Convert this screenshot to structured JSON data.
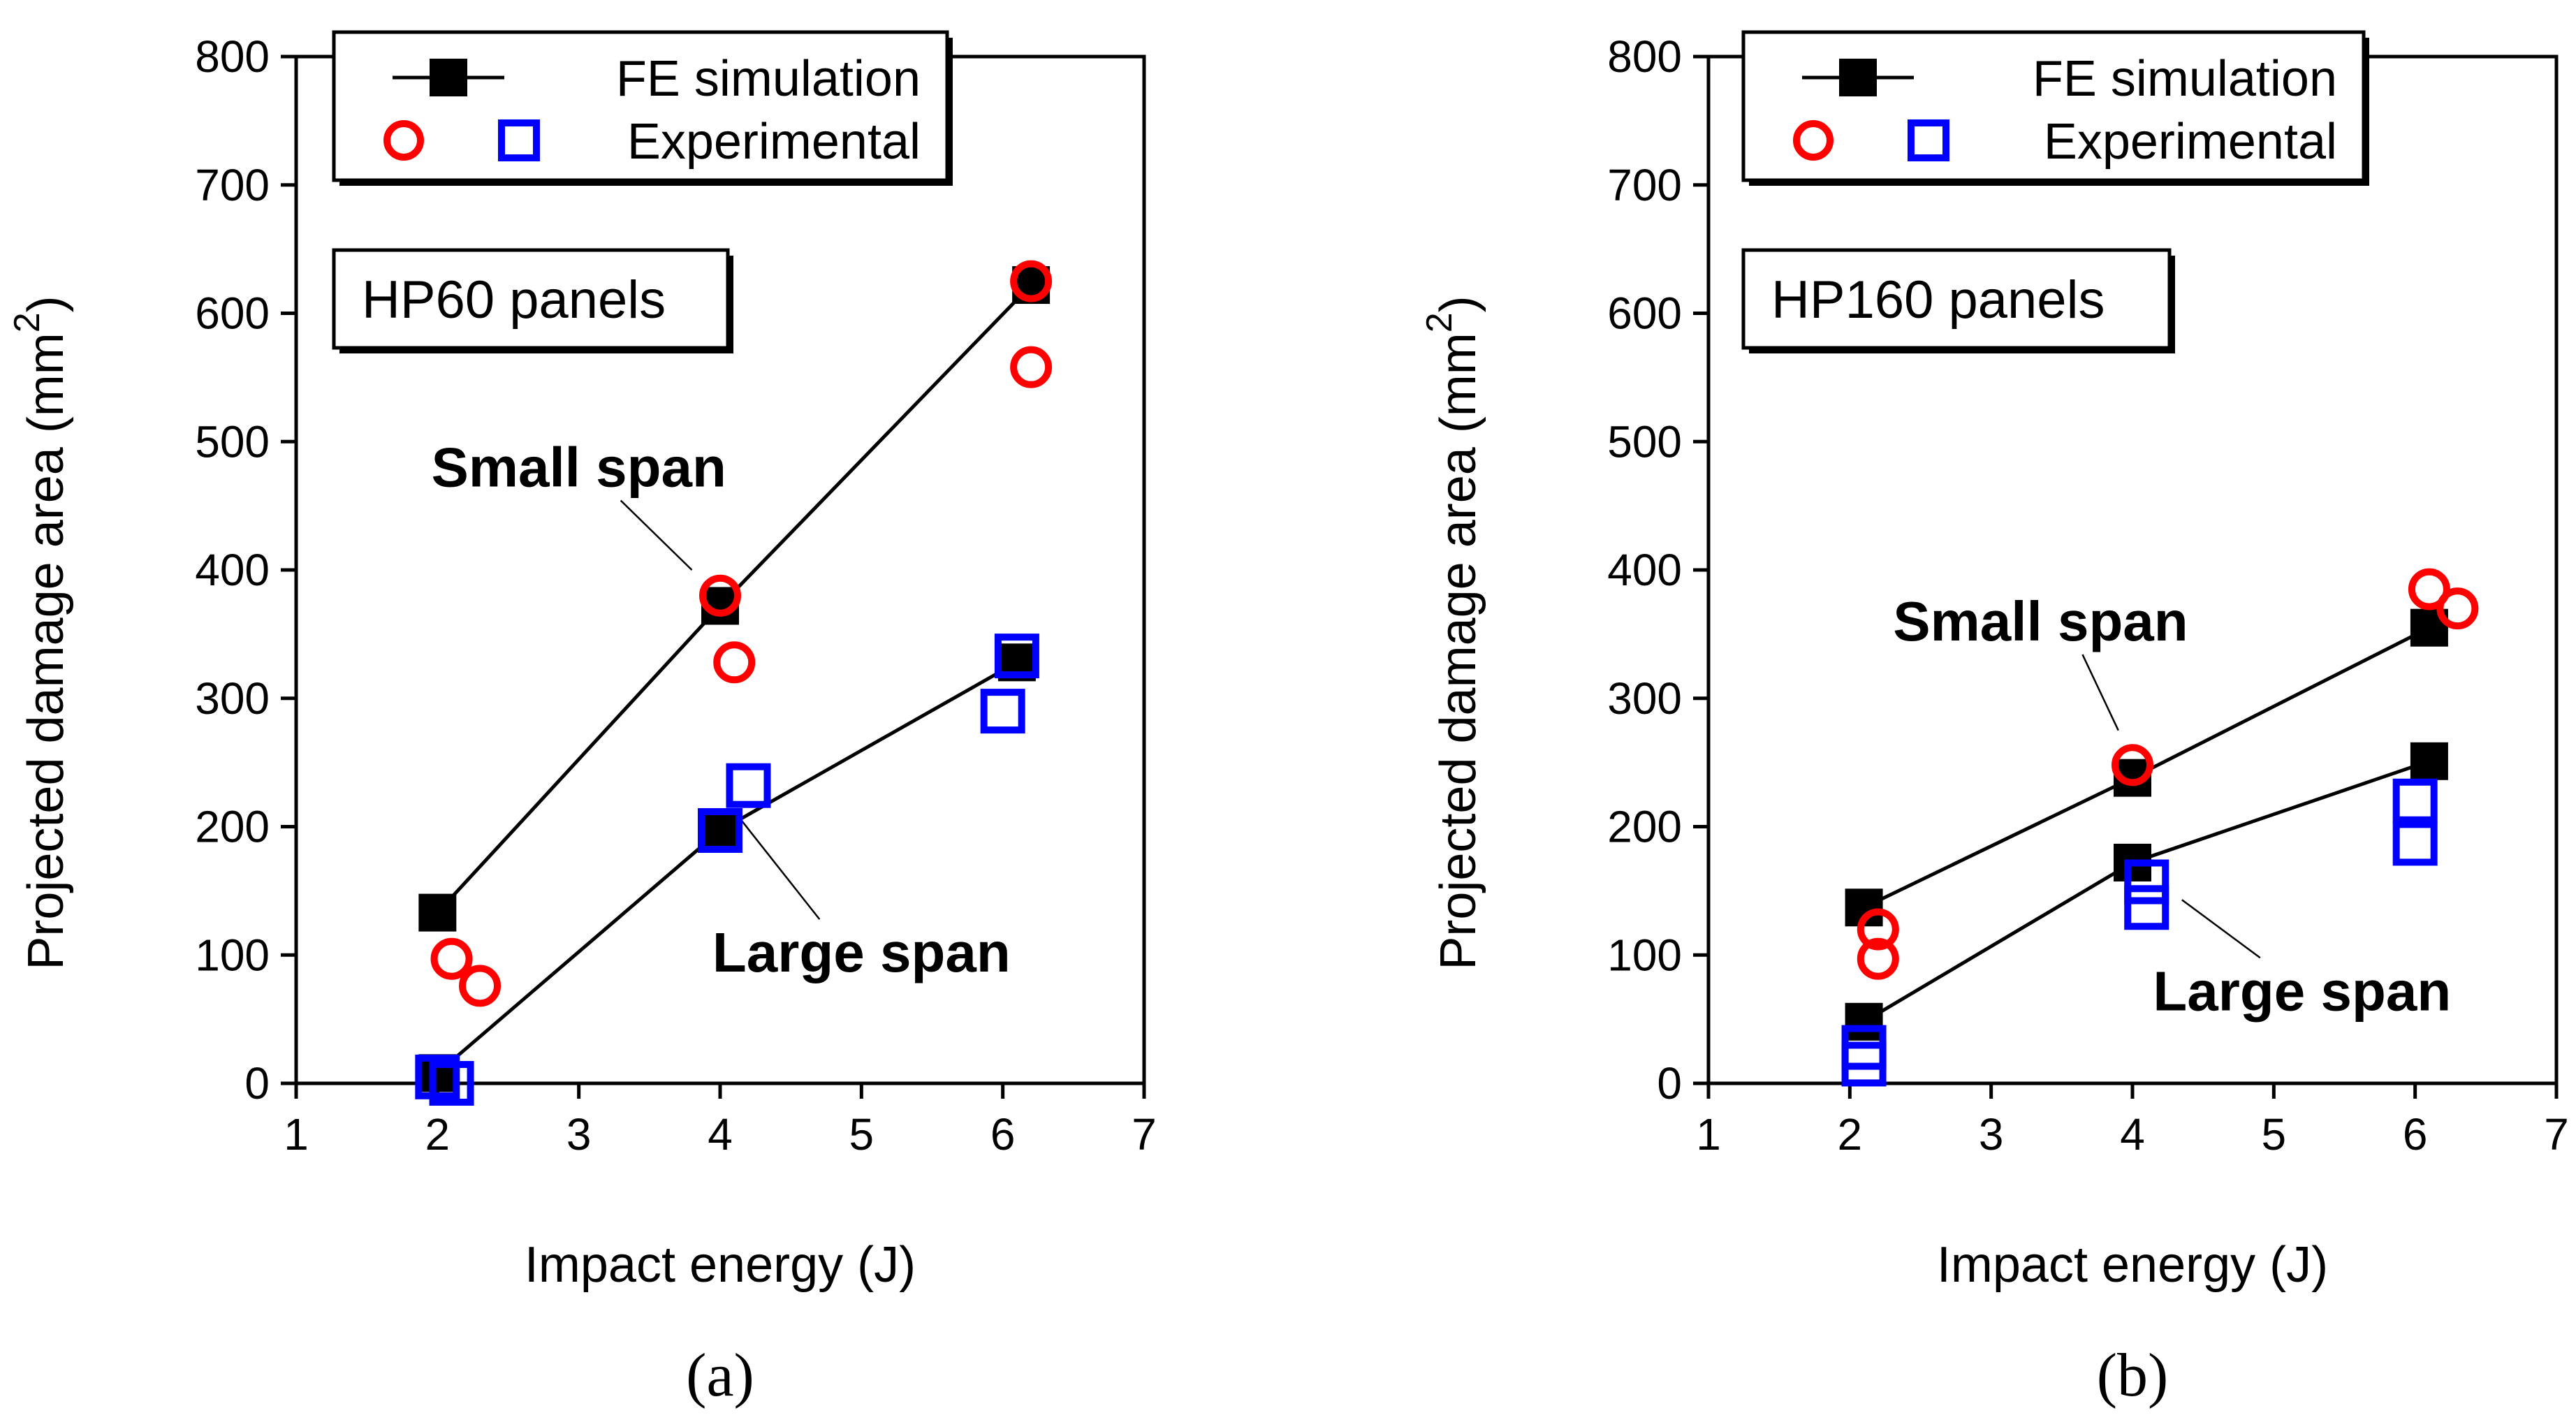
{
  "chart_data": [
    {
      "type": "scatter",
      "panel": "a",
      "caption": "(a)",
      "panel_label": "HP60 panels",
      "xlabel": "Impact energy (J)",
      "ylabel": "Projected damage area (mm",
      "ylabel_superscript": "2",
      "ylabel_close": ")",
      "xlim": [
        1,
        7
      ],
      "ylim": [
        0,
        800
      ],
      "xticks": [
        "1",
        "2",
        "3",
        "4",
        "5",
        "6",
        "7"
      ],
      "yticks": [
        "0",
        "100",
        "200",
        "300",
        "400",
        "500",
        "600",
        "700",
        "800"
      ],
      "grid": false,
      "legend": {
        "location": "top",
        "entries": [
          {
            "label": "FE simulation",
            "marker": "filled-square-line",
            "color": "#000000"
          },
          {
            "label": "Experimental",
            "marker": "open-circle-and-square",
            "colors": [
              "#ff0000",
              "#0000ff"
            ]
          }
        ]
      },
      "series": [
        {
          "name": "FE simulation - Small span",
          "style": "line-filled-square",
          "color": "#000000",
          "x": [
            2.0,
            4.0,
            6.2
          ],
          "y": [
            133,
            372,
            622
          ]
        },
        {
          "name": "FE simulation - Large span",
          "style": "line-filled-square",
          "color": "#000000",
          "x": [
            2.0,
            4.0,
            6.1
          ],
          "y": [
            8,
            197,
            328
          ]
        },
        {
          "name": "Experimental - Small span",
          "style": "open-circle",
          "color": "#ff0000",
          "x": [
            2.1,
            2.3,
            4.0,
            4.1,
            6.2,
            6.2
          ],
          "y": [
            97,
            76,
            380,
            328,
            625,
            558
          ]
        },
        {
          "name": "Experimental - Large span",
          "style": "open-square",
          "color": "#0000ff",
          "x": [
            2.0,
            2.1,
            4.0,
            4.2,
            6.0,
            6.1
          ],
          "y": [
            5,
            0,
            197,
            232,
            290,
            333
          ]
        }
      ],
      "annotations": [
        {
          "text": "Small span",
          "x": 3.0,
          "y": 465,
          "pointer_to": [
            3.8,
            400
          ]
        },
        {
          "text": "Large span",
          "x": 5.0,
          "y": 87,
          "pointer_to": [
            4.15,
            205
          ]
        }
      ]
    },
    {
      "type": "scatter",
      "panel": "b",
      "caption": "(b)",
      "panel_label": "HP160 panels",
      "xlabel": "Impact energy (J)",
      "ylabel": "Projected damage area (mm",
      "ylabel_superscript": "2",
      "ylabel_close": ")",
      "xlim": [
        1,
        7
      ],
      "ylim": [
        0,
        800
      ],
      "xticks": [
        "1",
        "2",
        "3",
        "4",
        "5",
        "6",
        "7"
      ],
      "yticks": [
        "0",
        "100",
        "200",
        "300",
        "400",
        "500",
        "600",
        "700",
        "800"
      ],
      "grid": false,
      "legend": {
        "location": "top",
        "entries": [
          {
            "label": "FE simulation",
            "marker": "filled-square-line",
            "color": "#000000"
          },
          {
            "label": "Experimental",
            "marker": "open-circle-and-square",
            "colors": [
              "#ff0000",
              "#0000ff"
            ]
          }
        ]
      },
      "series": [
        {
          "name": "FE simulation - Small span",
          "style": "line-filled-square",
          "color": "#000000",
          "x": [
            2.1,
            4.0,
            6.1
          ],
          "y": [
            137,
            238,
            355
          ]
        },
        {
          "name": "FE simulation - Large span",
          "style": "line-filled-square",
          "color": "#000000",
          "x": [
            2.1,
            4.0,
            6.1
          ],
          "y": [
            48,
            172,
            251
          ]
        },
        {
          "name": "Experimental - Small span",
          "style": "open-circle",
          "color": "#ff0000",
          "x": [
            2.2,
            2.2,
            4.0,
            6.1,
            6.3
          ],
          "y": [
            120,
            97,
            248,
            385,
            370
          ]
        },
        {
          "name": "Experimental - Large span",
          "style": "open-square",
          "color": "#0000ff",
          "x": [
            2.1,
            2.1,
            4.1,
            4.1,
            6.0,
            6.0
          ],
          "y": [
            28,
            15,
            157,
            137,
            220,
            187
          ]
        }
      ],
      "annotations": [
        {
          "text": "Small span",
          "x": 3.35,
          "y": 345,
          "pointer_to": [
            3.9,
            275
          ]
        },
        {
          "text": "Large span",
          "x": 5.2,
          "y": 57,
          "pointer_to": [
            4.35,
            143
          ]
        }
      ]
    }
  ]
}
